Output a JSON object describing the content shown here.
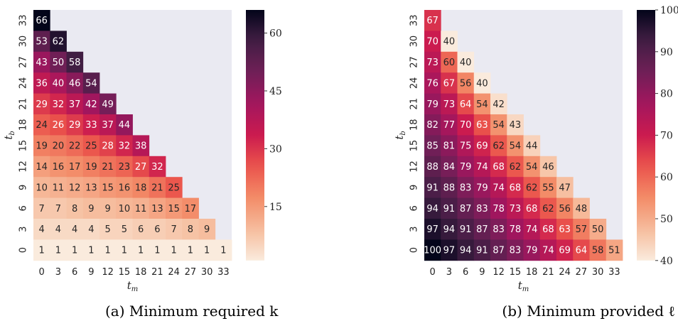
{
  "chart_data": [
    {
      "type": "heatmap",
      "caption": "(a) Minimum required k",
      "xlabel": "t_m",
      "ylabel": "t_b",
      "x": [
        0,
        3,
        6,
        9,
        12,
        15,
        18,
        21,
        24,
        27,
        30,
        33
      ],
      "y": [
        33,
        30,
        27,
        24,
        21,
        18,
        15,
        12,
        9,
        6,
        3,
        0
      ],
      "rows": [
        [
          66
        ],
        [
          53,
          62
        ],
        [
          43,
          50,
          58
        ],
        [
          36,
          40,
          46,
          54
        ],
        [
          29,
          32,
          37,
          42,
          49
        ],
        [
          24,
          26,
          29,
          33,
          37,
          44
        ],
        [
          19,
          20,
          22,
          25,
          28,
          32,
          38
        ],
        [
          14,
          16,
          17,
          19,
          21,
          23,
          27,
          32
        ],
        [
          10,
          11,
          12,
          13,
          15,
          16,
          18,
          21,
          25
        ],
        [
          7,
          7,
          8,
          9,
          9,
          10,
          11,
          13,
          15,
          17
        ],
        [
          4,
          4,
          4,
          4,
          5,
          5,
          6,
          6,
          7,
          8,
          9
        ],
        [
          1,
          1,
          1,
          1,
          1,
          1,
          1,
          1,
          1,
          1,
          1,
          1
        ]
      ],
      "colorbar": {
        "vmin": 1,
        "vmax": 66,
        "ticks": [
          15,
          30,
          45,
          60
        ]
      },
      "colormap": "rocket_r",
      "background": "#eaeaf2"
    },
    {
      "type": "heatmap",
      "caption": "(b) Minimum provided ℓ",
      "xlabel": "t_m",
      "ylabel": "t_b",
      "x": [
        0,
        3,
        6,
        9,
        12,
        15,
        18,
        21,
        24,
        27,
        30,
        33
      ],
      "y": [
        33,
        30,
        27,
        24,
        21,
        18,
        15,
        12,
        9,
        6,
        3,
        0
      ],
      "rows": [
        [
          67
        ],
        [
          70,
          40
        ],
        [
          73,
          60,
          40
        ],
        [
          76,
          67,
          56,
          40
        ],
        [
          79,
          73,
          64,
          54,
          42
        ],
        [
          82,
          77,
          70,
          63,
          54,
          43
        ],
        [
          85,
          81,
          75,
          69,
          62,
          54,
          44
        ],
        [
          88,
          84,
          79,
          74,
          68,
          62,
          54,
          46
        ],
        [
          91,
          88,
          83,
          79,
          74,
          68,
          62,
          55,
          47
        ],
        [
          94,
          91,
          87,
          83,
          78,
          73,
          68,
          62,
          56,
          48
        ],
        [
          97,
          94,
          91,
          87,
          83,
          78,
          74,
          68,
          63,
          57,
          50
        ],
        [
          100,
          97,
          94,
          91,
          87,
          83,
          79,
          74,
          69,
          64,
          58,
          51
        ]
      ],
      "colorbar": {
        "vmin": 40,
        "vmax": 100,
        "ticks": [
          40,
          50,
          60,
          70,
          80,
          90,
          100
        ]
      },
      "colormap": "rocket_r",
      "background": "#eaeaf2"
    }
  ]
}
